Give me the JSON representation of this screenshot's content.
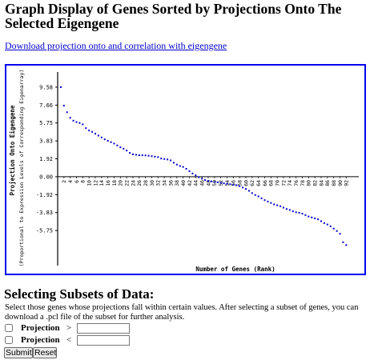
{
  "page": {
    "title": "Graph Display of Genes Sorted by Projections Onto The Selected Eigengene",
    "download_link": "Download projection onto and correlation with eigengene"
  },
  "chart_data": {
    "type": "scatter",
    "title": "",
    "xlabel": "Number of Genes (Rank)",
    "ylabel": "Projection Onto Eigengene",
    "ylabel2": "(Proportional to Expression Levels of Corresponding Eigenarray)",
    "y_ticks": [
      "9.58",
      "7.66",
      "5.75",
      "3.83",
      "1.92",
      "0.00",
      "-1.92",
      "-3.83",
      "-5.75"
    ],
    "x_ticks": [
      "2",
      "4",
      "6",
      "8",
      "10",
      "12",
      "14",
      "16",
      "18",
      "20",
      "22",
      "24",
      "26",
      "28",
      "30",
      "32",
      "34",
      "36",
      "38",
      "40",
      "42",
      "44",
      "46",
      "48",
      "50",
      "52",
      "54",
      "56",
      "58",
      "60",
      "62",
      "64",
      "66",
      "68",
      "70",
      "72",
      "74",
      "76",
      "78",
      "80",
      "82",
      "84",
      "86",
      "88",
      "90",
      "92"
    ],
    "ylim": [
      -9.5,
      11.2
    ],
    "xlim": [
      0,
      96
    ],
    "point_color": "#0000cc",
    "grid": false,
    "x": [
      1,
      2,
      3,
      4,
      5,
      6,
      7,
      8,
      9,
      10,
      11,
      12,
      13,
      14,
      15,
      16,
      17,
      18,
      19,
      20,
      21,
      22,
      23,
      24,
      25,
      26,
      27,
      28,
      29,
      30,
      31,
      32,
      33,
      34,
      35,
      36,
      37,
      38,
      39,
      40,
      41,
      42,
      43,
      44,
      45,
      46,
      47,
      48,
      49,
      50,
      51,
      52,
      53,
      54,
      55,
      56,
      57,
      58,
      59,
      60,
      61,
      62,
      63,
      64,
      65,
      66,
      67,
      68,
      69,
      70,
      71,
      72,
      73,
      74,
      75,
      76,
      77,
      78,
      79,
      80,
      81,
      82,
      83,
      84,
      85,
      86,
      87,
      88,
      89,
      90,
      91,
      92
    ],
    "y": [
      9.58,
      7.6,
      6.9,
      6.3,
      6.0,
      5.85,
      5.75,
      5.6,
      5.2,
      4.95,
      4.8,
      4.6,
      4.4,
      4.2,
      4.0,
      3.85,
      3.7,
      3.55,
      3.35,
      3.15,
      3.0,
      2.8,
      2.55,
      2.4,
      2.35,
      2.3,
      2.3,
      2.28,
      2.25,
      2.2,
      2.15,
      2.1,
      1.95,
      1.9,
      1.85,
      1.75,
      1.5,
      1.3,
      1.15,
      1.05,
      0.85,
      0.6,
      0.35,
      0.15,
      -0.05,
      -0.2,
      -0.35,
      -0.45,
      -0.5,
      -0.55,
      -0.6,
      -0.65,
      -0.7,
      -0.75,
      -0.8,
      -0.85,
      -0.9,
      -1.0,
      -1.15,
      -1.3,
      -1.5,
      -1.75,
      -1.95,
      -2.1,
      -2.3,
      -2.5,
      -2.65,
      -2.8,
      -2.95,
      -3.05,
      -3.15,
      -3.3,
      -3.45,
      -3.55,
      -3.7,
      -3.8,
      -3.85,
      -3.95,
      -4.1,
      -4.25,
      -4.35,
      -4.45,
      -4.55,
      -4.75,
      -4.95,
      -5.1,
      -5.3,
      -5.55,
      -5.8,
      -6.1,
      -7.0,
      -7.3
    ]
  },
  "subsets": {
    "heading": "Selecting Subsets of Data:",
    "description": "Select those genes whose projections fall within certain values. After selecting a subset of genes, you can download a .pcl file of the subset for further analysis.",
    "rows": [
      {
        "label": "Projection",
        "operator": ">",
        "value": ""
      },
      {
        "label": "Projection",
        "operator": "<",
        "value": ""
      }
    ],
    "submit_label": "Submit",
    "reset_label": "Reset"
  }
}
